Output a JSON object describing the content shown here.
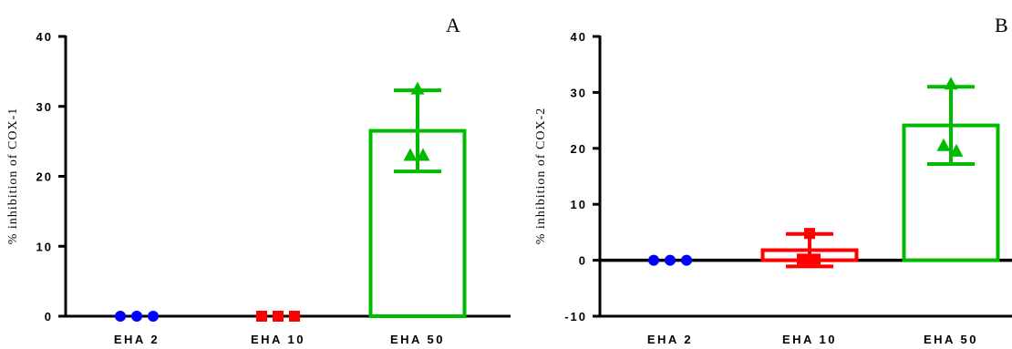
{
  "chart_data": [
    {
      "type": "bar",
      "panel_label": "A",
      "ylabel": "% inhibition of COX-1",
      "ylim": [
        0,
        40
      ],
      "yticks": [
        "0",
        "10",
        "20",
        "30",
        "40"
      ],
      "categories": [
        "EHA 2",
        "EHA 10",
        "EHA 50"
      ],
      "series": [
        {
          "category": "EHA 2",
          "mean": 0,
          "error": 0,
          "color": "#0000ff",
          "marker": "circle",
          "points": [
            0,
            0,
            0
          ]
        },
        {
          "category": "EHA 10",
          "mean": 0,
          "error": 0,
          "color": "#ff0000",
          "marker": "square",
          "points": [
            0,
            0,
            0
          ]
        },
        {
          "category": "EHA 50",
          "mean": 26.5,
          "error": 5.8,
          "color": "#00bb00",
          "marker": "triangle",
          "points": [
            32.5,
            23,
            23
          ]
        }
      ],
      "grid": false,
      "zero_line": false
    },
    {
      "type": "bar",
      "panel_label": "B",
      "ylabel": "% inhibition of COX-2",
      "ylim": [
        -10,
        40
      ],
      "yticks": [
        "-10",
        "0",
        "10",
        "20",
        "30",
        "40"
      ],
      "categories": [
        "EHA 2",
        "EHA 10",
        "EHA 50"
      ],
      "series": [
        {
          "category": "EHA 2",
          "mean": 0,
          "error": 0,
          "color": "#0000ff",
          "marker": "circle",
          "points": [
            0,
            0,
            0
          ]
        },
        {
          "category": "EHA 10",
          "mean": 1.8,
          "error": 2.9,
          "color": "#ff0000",
          "marker": "square",
          "points": [
            4.8,
            0.2,
            0.2
          ]
        },
        {
          "category": "EHA 50",
          "mean": 24.1,
          "error": 6.9,
          "color": "#00bb00",
          "marker": "triangle",
          "points": [
            31.5,
            20.5,
            19.5
          ]
        }
      ],
      "grid": false,
      "zero_line": true
    }
  ]
}
